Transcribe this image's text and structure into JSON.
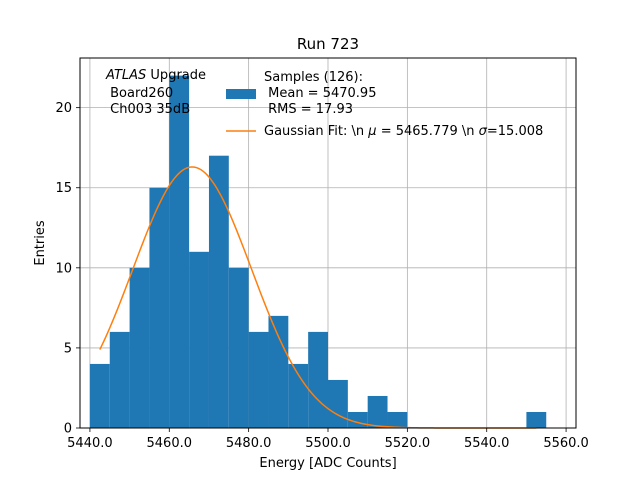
{
  "chart_data": {
    "type": "histogram",
    "title": "Run 723",
    "xlabel": "Energy [ADC Counts]",
    "ylabel": "Entries",
    "xlim": [
      5437.5,
      5562.5
    ],
    "ylim": [
      0,
      23.1
    ],
    "grid": true,
    "x_ticks": [
      5440.0,
      5460.0,
      5480.0,
      5500.0,
      5520.0,
      5540.0,
      5560.0
    ],
    "x_tick_labels": [
      "5440.0",
      "5460.0",
      "5480.0",
      "5500.0",
      "5520.0",
      "5540.0",
      "5560.0"
    ],
    "y_ticks": [
      0,
      5,
      10,
      15,
      20
    ],
    "y_tick_labels": [
      "0",
      "5",
      "10",
      "15",
      "20"
    ],
    "bin_edges": [
      5440,
      5445,
      5450,
      5455,
      5460,
      5465,
      5470,
      5475,
      5480,
      5485,
      5490,
      5495,
      5500,
      5505,
      5510,
      5515,
      5520,
      5525,
      5530,
      5535,
      5540,
      5545,
      5550,
      5555
    ],
    "counts": [
      4,
      6,
      10,
      15,
      22,
      11,
      17,
      10,
      6,
      7,
      4,
      6,
      3,
      1,
      2,
      1,
      0,
      0,
      0,
      0,
      0,
      0,
      1
    ],
    "bar_color": "#1f77b4",
    "fit": {
      "name": "Gaussian Fit",
      "mu": 5465.779,
      "sigma": 15.008,
      "amplitude": 16.3,
      "x_range": [
        5442.5,
        5552.5
      ],
      "color": "#ff7f0e"
    },
    "annotation": {
      "lines": [
        "Upgrade",
        " Board260",
        " Ch003 35dB"
      ],
      "italic_word": "ATLAS"
    },
    "legend": {
      "placement": "top-right",
      "samples_label": [
        "Samples (126):",
        " Mean = 5470.95",
        " RMS = 17.93"
      ],
      "fit_label_prefix": "Gaussian Fit: \\n ",
      "fit_mu_symbol": "μ",
      "fit_mu_value": " = 5465.779 \\n ",
      "fit_sigma_symbol": "σ",
      "fit_sigma_value": "=15.008"
    }
  }
}
